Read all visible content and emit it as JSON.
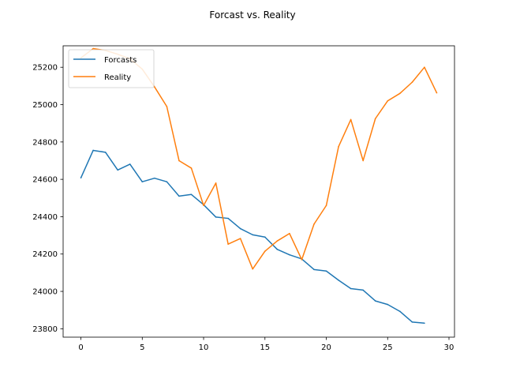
{
  "chart_data": {
    "type": "line",
    "title": "Forcast vs. Reality",
    "xlabel": "",
    "ylabel": "",
    "xlim": [
      -1.45,
      30.45
    ],
    "ylim": [
      23755,
      25315
    ],
    "xticks": [
      0,
      5,
      10,
      15,
      20,
      25,
      30
    ],
    "yticks": [
      23800,
      24000,
      24200,
      24400,
      24600,
      24800,
      25000,
      25200
    ],
    "grid": false,
    "legend": "upper left",
    "colors": {
      "forecast": "#1f77b4",
      "reality": "#ff7f0e"
    },
    "series": [
      {
        "name": "Forcasts",
        "color": "#1f77b4",
        "x": [
          0,
          1,
          2,
          3,
          4,
          5,
          6,
          7,
          8,
          9,
          10,
          11,
          12,
          13,
          14,
          15,
          16,
          17,
          18,
          19,
          20,
          21,
          22,
          23,
          24,
          25,
          26,
          27,
          28
        ],
        "values": [
          24608,
          24755,
          24745,
          24650,
          24681,
          24587,
          24606,
          24587,
          24510,
          24519,
          24464,
          24398,
          24391,
          24336,
          24303,
          24291,
          24225,
          24196,
          24174,
          24117,
          24109,
          24060,
          24015,
          24007,
          23949,
          23930,
          23893,
          23836,
          23830
        ]
      },
      {
        "name": "Reality",
        "color": "#ff7f0e",
        "x": [
          0,
          1,
          2,
          3,
          4,
          5,
          6,
          7,
          8,
          9,
          10,
          11,
          12,
          13,
          14,
          15,
          16,
          17,
          18,
          19,
          20,
          21,
          22,
          23,
          24,
          25,
          26,
          27,
          28,
          29
        ],
        "values": [
          25250,
          25300,
          25290,
          25270,
          25245,
          25190,
          25095,
          24990,
          24700,
          24660,
          24460,
          24580,
          24253,
          24283,
          24120,
          24215,
          24270,
          24310,
          24170,
          24360,
          24460,
          24775,
          24920,
          24700,
          24925,
          25020,
          25060,
          25120,
          25200,
          25063
        ]
      }
    ]
  }
}
